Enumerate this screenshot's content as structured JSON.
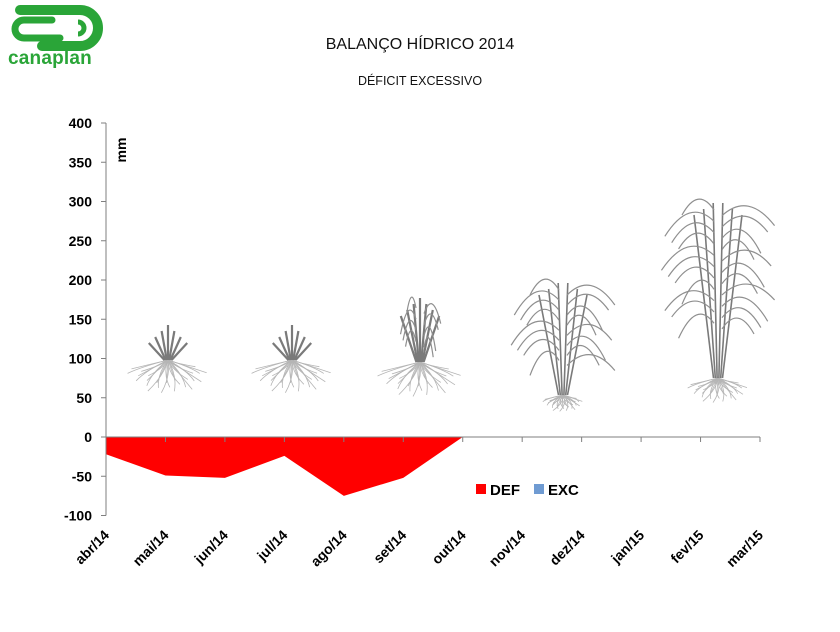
{
  "logo": {
    "text": "canaplan",
    "color": "#2aa538"
  },
  "chart_data": {
    "type": "area",
    "title": "BALANÇO HÍDRICO 2014",
    "subtitle": "DÉFICIT EXCESSIVO",
    "ylabel": "mm",
    "xlabel": "",
    "ylim": [
      -100,
      400
    ],
    "yticks": [
      400,
      350,
      300,
      250,
      200,
      150,
      100,
      50,
      0,
      -50,
      -100
    ],
    "categories": [
      "abr/14",
      "mai/14",
      "jun/14",
      "jul/14",
      "ago/14",
      "set/14",
      "out/14",
      "nov/14",
      "dez/14",
      "jan/15",
      "fev/15",
      "mar/15"
    ],
    "series": [
      {
        "name": "DEF",
        "color": "#ff0000",
        "values": [
          -22,
          -49,
          -52,
          -24,
          -75,
          -52,
          0,
          0,
          0,
          0,
          0,
          0
        ]
      },
      {
        "name": "EXC",
        "color": "#6f9bd2",
        "values": [
          0,
          0,
          0,
          0,
          0,
          0,
          0,
          0,
          0,
          0,
          0,
          0
        ]
      }
    ],
    "legend": "right",
    "grid": false,
    "illustrations": [
      "sugarcane-plant-icon",
      "sugarcane-plant-icon",
      "sugarcane-plant-icon",
      "sugarcane-plant-icon",
      "sugarcane-plant-icon",
      "sugarcane-plant-icon"
    ]
  }
}
